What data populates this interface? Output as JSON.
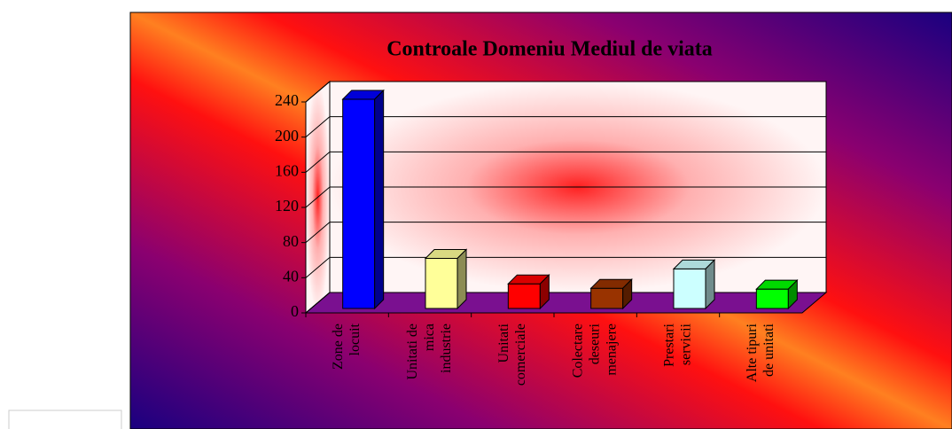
{
  "chart_data": {
    "type": "bar3d",
    "title": "Controale Domeniu Mediul de viata",
    "categories": [
      "Zone de locuit",
      "Unitati de mica industrie",
      "Unitati comerciale",
      "Colectare deseuri menajere",
      "Prestari servicii",
      "Alte tipuri de unitati"
    ],
    "values": [
      238,
      57,
      28,
      23,
      45,
      22
    ],
    "colors": [
      "#0000ff",
      "#ffff99",
      "#ff0000",
      "#993300",
      "#ccffff",
      "#00ff00"
    ],
    "ylim": [
      0,
      240
    ],
    "yticks": [
      0,
      40,
      80,
      120,
      160,
      200,
      240
    ],
    "grid": true
  }
}
